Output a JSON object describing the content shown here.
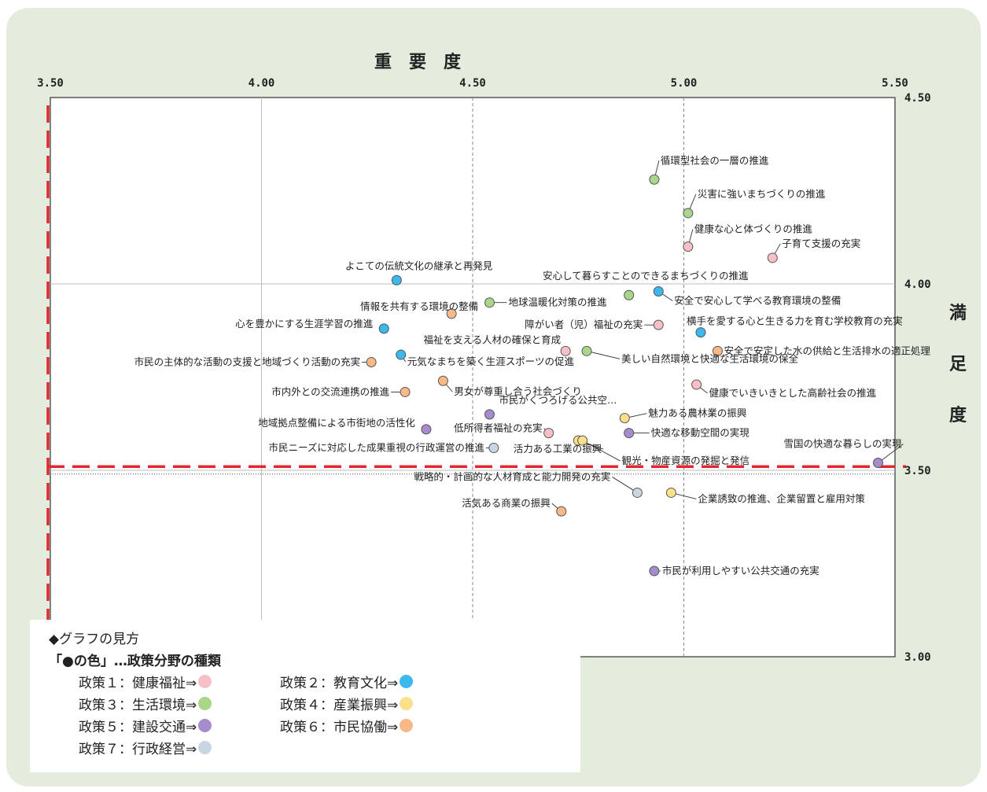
{
  "chart_data": {
    "type": "scatter",
    "xlabel": "重　要　度",
    "ylabel": "満足度",
    "ylabel_chars": [
      "満",
      "足",
      "度"
    ],
    "xlim": [
      3.5,
      5.5
    ],
    "ylim": [
      3.0,
      4.5
    ],
    "x_ticks": [
      "3.50",
      "4.00",
      "4.50",
      "5.00",
      "5.50"
    ],
    "y_ticks": [
      "4.50",
      "4.00",
      "3.50",
      "3.00"
    ],
    "averages": {
      "x": 4.5,
      "y": 3.49
    },
    "red_reference": {
      "x": 3.5,
      "y": 3.51
    },
    "policy_colors": {
      "1": "#f7c0c8",
      "2": "#3cb8ee",
      "3": "#a9d68a",
      "4": "#fbe08a",
      "5": "#a78ccd",
      "6": "#f6b987",
      "7": "#c9d5e3"
    },
    "points": [
      {
        "label": "循環型社会の一層の推進",
        "x": 4.93,
        "y": 4.28,
        "policy": 3
      },
      {
        "label": "災害に強いまちづくりの推進",
        "x": 5.01,
        "y": 4.19,
        "policy": 3
      },
      {
        "label": "健康な心と体づくりの推進",
        "x": 5.01,
        "y": 4.1,
        "policy": 1
      },
      {
        "label": "子育て支援の充実",
        "x": 5.21,
        "y": 4.07,
        "policy": 1
      },
      {
        "label": "よこての伝統文化の継承と再発見",
        "x": 4.32,
        "y": 4.01,
        "policy": 2
      },
      {
        "label": "安心して暮らすことのできるまちづくりの推進",
        "x": 4.87,
        "y": 3.97,
        "policy": 3
      },
      {
        "label": "安全で安心して学べる教育環境の整備",
        "x": 4.94,
        "y": 3.98,
        "policy": 2
      },
      {
        "label": "情報を共有する環境の整備",
        "x": 4.45,
        "y": 3.92,
        "policy": 6
      },
      {
        "label": "地球温暖化対策の推進",
        "x": 4.54,
        "y": 3.95,
        "policy": 3
      },
      {
        "label": "心を豊かにする生涯学習の推進",
        "x": 4.29,
        "y": 3.88,
        "policy": 2
      },
      {
        "label": "障がい者（児）福祉の充実",
        "x": 4.94,
        "y": 3.89,
        "policy": 1
      },
      {
        "label": "横手を愛する心と生きる力を育む学校教育の充実",
        "x": 5.04,
        "y": 3.87,
        "policy": 2
      },
      {
        "label": "福祉を支える人材の確保と育成",
        "x": 4.72,
        "y": 3.82,
        "policy": 1
      },
      {
        "label": "安全で安定した水の供給と生活排水の適正処理",
        "x": 5.08,
        "y": 3.82,
        "policy": 6
      },
      {
        "label": "市民の主体的な活動の支援と地域づくり活動の充実",
        "x": 4.26,
        "y": 3.79,
        "policy": 6
      },
      {
        "label": "元気なまちを築く生涯スポーツの促進",
        "x": 4.33,
        "y": 3.81,
        "policy": 2
      },
      {
        "label": "美しい自然環境と快適な生活環境の保全",
        "x": 4.77,
        "y": 3.82,
        "policy": 3
      },
      {
        "label": "男女が尊重し合う社会づくり",
        "x": 4.43,
        "y": 3.74,
        "policy": 6
      },
      {
        "label": "健康でいきいきとした高齢社会の推進",
        "x": 5.03,
        "y": 3.73,
        "policy": 1
      },
      {
        "label": "市内外との交流連携の推進",
        "x": 4.34,
        "y": 3.71,
        "policy": 6
      },
      {
        "label": "市民がくつろげる公共空…",
        "x": 4.54,
        "y": 3.65,
        "policy": 5
      },
      {
        "label": "魅力ある農林業の振興",
        "x": 4.86,
        "y": 3.64,
        "policy": 4
      },
      {
        "label": "地域拠点整備による市街地の活性化",
        "x": 4.39,
        "y": 3.61,
        "policy": 5
      },
      {
        "label": "低所得者福祉の充実",
        "x": 4.68,
        "y": 3.6,
        "policy": 1
      },
      {
        "label": "快適な移動空間の実現",
        "x": 4.87,
        "y": 3.6,
        "policy": 5
      },
      {
        "label": "活力ある工業の振興",
        "x": 4.75,
        "y": 3.58,
        "policy": 4
      },
      {
        "label": "観光・物産資源の発掘と発信",
        "x": 4.76,
        "y": 3.58,
        "policy": 4
      },
      {
        "label": "市民ニーズに対応した成果重視の行政運営の推進",
        "x": 4.55,
        "y": 3.56,
        "policy": 7
      },
      {
        "label": "雪国の快適な暮らしの実現",
        "x": 5.46,
        "y": 3.52,
        "policy": 5
      },
      {
        "label": "戦略的・計画的な人材育成と能力開発の充実",
        "x": 4.89,
        "y": 3.44,
        "policy": 7
      },
      {
        "label": "企業誘致の推進、企業留置と雇用対策",
        "x": 4.97,
        "y": 3.44,
        "policy": 4
      },
      {
        "label": "活気ある商業の振興",
        "x": 4.71,
        "y": 3.39,
        "policy": 6
      },
      {
        "label": "市民が利用しやすい公共交通の充実",
        "x": 4.93,
        "y": 3.23,
        "policy": 5
      }
    ]
  },
  "legend": {
    "title": "◆グラフの見方",
    "subtitle": "「●の色」…政策分野の種類",
    "items": [
      {
        "label": "政策１：健康福祉⇒",
        "policy": 1
      },
      {
        "label": "政策２：教育文化⇒",
        "policy": 2
      },
      {
        "label": "政策３：生活環境⇒",
        "policy": 3
      },
      {
        "label": "政策４：産業振興⇒",
        "policy": 4
      },
      {
        "label": "政策５：建設交通⇒",
        "policy": 5
      },
      {
        "label": "政策６：市民協働⇒",
        "policy": 6
      },
      {
        "label": "政策７：行政経営⇒",
        "policy": 7
      }
    ]
  }
}
